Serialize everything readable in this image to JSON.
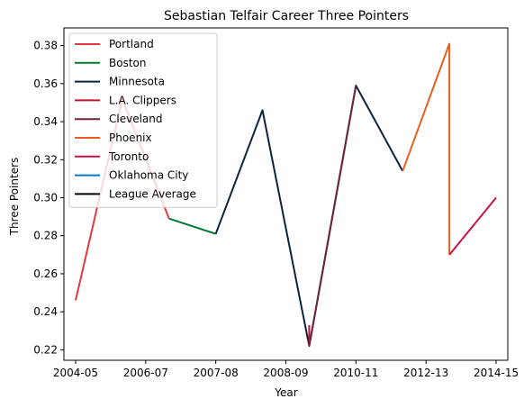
{
  "chart_data": {
    "type": "line",
    "title": "Sebastian Telfair Career Three Pointers",
    "xlabel": "Year",
    "ylabel": "Three Pointers",
    "x_ticks": [
      "2004-05",
      "2006-07",
      "2007-08",
      "2008-09",
      "2010-11",
      "2012-13",
      "2014-15"
    ],
    "y_ticks": [
      "0.22",
      "0.24",
      "0.26",
      "0.28",
      "0.30",
      "0.32",
      "0.34",
      "0.36",
      "0.38"
    ],
    "ylim": [
      0.2145,
      0.3893
    ],
    "xlim": [
      -0.25,
      9.25
    ],
    "grid": false,
    "legend_position": "upper-left",
    "series": [
      {
        "name": "Portland",
        "color": "#e03a3e",
        "x": [
          0,
          1,
          2
        ],
        "y": [
          0.246,
          0.352,
          0.289
        ]
      },
      {
        "name": "Boston",
        "color": "#007a33",
        "x": [
          2,
          3
        ],
        "y": [
          0.289,
          0.281
        ]
      },
      {
        "name": "Minnesota",
        "color": "#0c2340",
        "x": [
          3,
          4,
          5,
          6,
          7
        ],
        "y": [
          0.281,
          0.346,
          0.222,
          0.359,
          0.314
        ]
      },
      {
        "name": "L.A. Clippers",
        "color": "#c8102e",
        "x": [
          5,
          5
        ],
        "y": [
          0.222,
          0.233
        ]
      },
      {
        "name": "Cleveland",
        "color": "#6f263d",
        "x": [
          5,
          6
        ],
        "y": [
          0.222,
          0.359
        ]
      },
      {
        "name": "Phoenix",
        "color": "#e56020",
        "x": [
          7,
          8,
          8
        ],
        "y": [
          0.314,
          0.381,
          0.27
        ]
      },
      {
        "name": "Toronto",
        "color": "#ce1141",
        "x": [
          8,
          9
        ],
        "y": [
          0.27,
          0.3
        ]
      },
      {
        "name": "Oklahoma City",
        "color": "#007ac1",
        "x": [],
        "y": []
      },
      {
        "name": "League Average",
        "color": "#000000",
        "x": [],
        "y": []
      }
    ]
  }
}
